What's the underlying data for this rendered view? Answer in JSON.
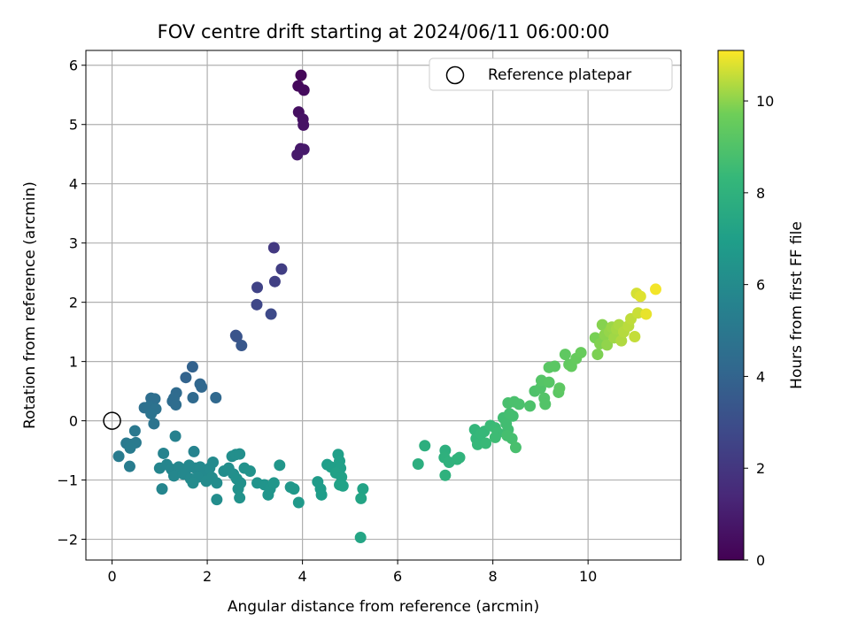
{
  "chart_data": {
    "type": "scatter",
    "title": "FOV centre drift starting at 2024/06/11 06:00:00",
    "xlabel": "Angular distance from reference (arcmin)",
    "ylabel": "Rotation from reference (arcmin)",
    "xlim": [
      -0.55,
      11.95
    ],
    "ylim": [
      -2.35,
      6.25
    ],
    "xticks": [
      0,
      2,
      4,
      6,
      8,
      10
    ],
    "yticks": [
      -2,
      -1,
      0,
      1,
      2,
      3,
      4,
      5,
      6
    ],
    "grid": true,
    "colormap": "viridis",
    "colorbar": {
      "label": "Hours from first FF file",
      "range": [
        0,
        11.1
      ],
      "ticks": [
        0,
        2,
        4,
        6,
        8,
        10
      ]
    },
    "legend": {
      "position": "top-right",
      "entries": [
        "Reference platepar"
      ]
    },
    "reference_point": {
      "x": 0,
      "y": 0
    },
    "points": [
      {
        "x": 3.97,
        "y": 5.83,
        "c": 0.2
      },
      {
        "x": 3.91,
        "y": 5.65,
        "c": 0.3
      },
      {
        "x": 4.03,
        "y": 5.58,
        "c": 0.35
      },
      {
        "x": 3.92,
        "y": 5.21,
        "c": 0.5
      },
      {
        "x": 4.01,
        "y": 5.09,
        "c": 0.6
      },
      {
        "x": 4.02,
        "y": 4.99,
        "c": 0.65
      },
      {
        "x": 3.96,
        "y": 4.59,
        "c": 0.8
      },
      {
        "x": 4.03,
        "y": 4.58,
        "c": 0.85
      },
      {
        "x": 3.89,
        "y": 4.49,
        "c": 0.9
      },
      {
        "x": 3.4,
        "y": 2.92,
        "c": 2.1
      },
      {
        "x": 3.56,
        "y": 2.56,
        "c": 2.3
      },
      {
        "x": 3.42,
        "y": 2.35,
        "c": 2.4
      },
      {
        "x": 3.05,
        "y": 2.25,
        "c": 2.5
      },
      {
        "x": 3.04,
        "y": 1.96,
        "c": 2.7
      },
      {
        "x": 3.34,
        "y": 1.8,
        "c": 2.8
      },
      {
        "x": 2.6,
        "y": 1.44,
        "c": 3.2
      },
      {
        "x": 2.62,
        "y": 1.42,
        "c": 3.25
      },
      {
        "x": 2.72,
        "y": 1.27,
        "c": 3.4
      },
      {
        "x": 1.69,
        "y": 0.91,
        "c": 3.9
      },
      {
        "x": 1.55,
        "y": 0.73,
        "c": 4.0
      },
      {
        "x": 1.85,
        "y": 0.62,
        "c": 4.1
      },
      {
        "x": 1.88,
        "y": 0.57,
        "c": 4.15
      },
      {
        "x": 1.35,
        "y": 0.47,
        "c": 4.3
      },
      {
        "x": 1.3,
        "y": 0.38,
        "c": 4.35
      },
      {
        "x": 1.27,
        "y": 0.33,
        "c": 4.4
      },
      {
        "x": 2.18,
        "y": 0.39,
        "c": 4.2
      },
      {
        "x": 0.82,
        "y": 0.38,
        "c": 4.5
      },
      {
        "x": 0.9,
        "y": 0.37,
        "c": 4.55
      },
      {
        "x": 0.68,
        "y": 0.22,
        "c": 4.6
      },
      {
        "x": 0.78,
        "y": 0.24,
        "c": 4.65
      },
      {
        "x": 0.92,
        "y": 0.2,
        "c": 4.7
      },
      {
        "x": 1.34,
        "y": 0.27,
        "c": 4.45
      },
      {
        "x": 0.82,
        "y": 0.12,
        "c": 4.75
      },
      {
        "x": 1.7,
        "y": 0.39,
        "c": 4.25
      },
      {
        "x": 0.88,
        "y": -0.05,
        "c": 4.8
      },
      {
        "x": 0.48,
        "y": -0.17,
        "c": 5.0
      },
      {
        "x": 0.3,
        "y": -0.38,
        "c": 5.05
      },
      {
        "x": 0.4,
        "y": -0.4,
        "c": 5.1
      },
      {
        "x": 0.5,
        "y": -0.37,
        "c": 5.1
      },
      {
        "x": 0.38,
        "y": -0.46,
        "c": 5.15
      },
      {
        "x": 0.14,
        "y": -0.6,
        "c": 5.2
      },
      {
        "x": 0.37,
        "y": -0.77,
        "c": 5.25
      },
      {
        "x": 1.33,
        "y": -0.26,
        "c": 5.5
      },
      {
        "x": 1.08,
        "y": -0.55,
        "c": 5.6
      },
      {
        "x": 1.72,
        "y": -0.52,
        "c": 5.6
      },
      {
        "x": 1.0,
        "y": -0.8,
        "c": 5.7
      },
      {
        "x": 1.15,
        "y": -0.74,
        "c": 5.7
      },
      {
        "x": 1.25,
        "y": -0.82,
        "c": 5.75
      },
      {
        "x": 1.4,
        "y": -0.78,
        "c": 5.8
      },
      {
        "x": 1.55,
        "y": -0.83,
        "c": 5.8
      },
      {
        "x": 1.62,
        "y": -0.75,
        "c": 5.85
      },
      {
        "x": 1.75,
        "y": -0.8,
        "c": 5.85
      },
      {
        "x": 1.85,
        "y": -0.78,
        "c": 5.9
      },
      {
        "x": 1.95,
        "y": -0.86,
        "c": 5.9
      },
      {
        "x": 2.05,
        "y": -0.8,
        "c": 5.95
      },
      {
        "x": 2.12,
        "y": -0.7,
        "c": 5.95
      },
      {
        "x": 1.3,
        "y": -0.93,
        "c": 5.8
      },
      {
        "x": 1.5,
        "y": -0.9,
        "c": 5.85
      },
      {
        "x": 1.65,
        "y": -0.98,
        "c": 5.9
      },
      {
        "x": 1.8,
        "y": -0.95,
        "c": 5.95
      },
      {
        "x": 1.98,
        "y": -1.02,
        "c": 6.0
      },
      {
        "x": 2.1,
        "y": -0.96,
        "c": 6.0
      },
      {
        "x": 2.2,
        "y": -1.05,
        "c": 6.05
      },
      {
        "x": 1.7,
        "y": -1.05,
        "c": 6.0
      },
      {
        "x": 1.05,
        "y": -1.15,
        "c": 5.7
      },
      {
        "x": 2.2,
        "y": -1.33,
        "c": 6.1
      },
      {
        "x": 2.35,
        "y": -0.85,
        "c": 6.1
      },
      {
        "x": 2.45,
        "y": -0.8,
        "c": 6.15
      },
      {
        "x": 2.52,
        "y": -0.6,
        "c": 6.15
      },
      {
        "x": 2.6,
        "y": -0.57,
        "c": 6.2
      },
      {
        "x": 2.68,
        "y": -0.56,
        "c": 6.2
      },
      {
        "x": 2.55,
        "y": -0.9,
        "c": 6.2
      },
      {
        "x": 2.62,
        "y": -0.98,
        "c": 6.25
      },
      {
        "x": 2.7,
        "y": -1.05,
        "c": 6.25
      },
      {
        "x": 2.78,
        "y": -0.8,
        "c": 6.3
      },
      {
        "x": 2.65,
        "y": -1.15,
        "c": 6.3
      },
      {
        "x": 2.68,
        "y": -1.3,
        "c": 6.35
      },
      {
        "x": 2.9,
        "y": -0.85,
        "c": 6.35
      },
      {
        "x": 3.05,
        "y": -1.05,
        "c": 6.4
      },
      {
        "x": 3.2,
        "y": -1.08,
        "c": 6.45
      },
      {
        "x": 3.28,
        "y": -1.25,
        "c": 6.5
      },
      {
        "x": 3.32,
        "y": -1.15,
        "c": 6.5
      },
      {
        "x": 3.4,
        "y": -1.05,
        "c": 6.55
      },
      {
        "x": 3.52,
        "y": -0.75,
        "c": 6.55
      },
      {
        "x": 3.75,
        "y": -1.12,
        "c": 6.6
      },
      {
        "x": 3.82,
        "y": -1.15,
        "c": 6.65
      },
      {
        "x": 3.92,
        "y": -1.38,
        "c": 6.7
      },
      {
        "x": 4.32,
        "y": -1.03,
        "c": 6.8
      },
      {
        "x": 4.38,
        "y": -1.15,
        "c": 6.85
      },
      {
        "x": 4.4,
        "y": -1.25,
        "c": 6.9
      },
      {
        "x": 4.52,
        "y": -0.74,
        "c": 6.95
      },
      {
        "x": 4.6,
        "y": -0.78,
        "c": 7.0
      },
      {
        "x": 4.75,
        "y": -0.57,
        "c": 7.0
      },
      {
        "x": 4.78,
        "y": -0.68,
        "c": 7.05
      },
      {
        "x": 4.8,
        "y": -0.8,
        "c": 7.05
      },
      {
        "x": 4.7,
        "y": -0.88,
        "c": 7.1
      },
      {
        "x": 4.82,
        "y": -0.95,
        "c": 7.1
      },
      {
        "x": 4.78,
        "y": -1.08,
        "c": 7.15
      },
      {
        "x": 4.85,
        "y": -1.1,
        "c": 7.15
      },
      {
        "x": 5.27,
        "y": -1.15,
        "c": 7.2
      },
      {
        "x": 5.23,
        "y": -1.31,
        "c": 7.25
      },
      {
        "x": 5.22,
        "y": -1.97,
        "c": 7.3
      },
      {
        "x": 6.43,
        "y": -0.73,
        "c": 7.8
      },
      {
        "x": 6.57,
        "y": -0.42,
        "c": 7.85
      },
      {
        "x": 7.0,
        "y": -0.5,
        "c": 7.9
      },
      {
        "x": 6.98,
        "y": -0.62,
        "c": 7.95
      },
      {
        "x": 7.08,
        "y": -0.7,
        "c": 8.0
      },
      {
        "x": 7.0,
        "y": -0.92,
        "c": 8.0
      },
      {
        "x": 7.25,
        "y": -0.65,
        "c": 8.05
      },
      {
        "x": 7.3,
        "y": -0.62,
        "c": 8.1
      },
      {
        "x": 7.62,
        "y": -0.15,
        "c": 8.2
      },
      {
        "x": 7.65,
        "y": -0.3,
        "c": 8.25
      },
      {
        "x": 7.68,
        "y": -0.4,
        "c": 8.3
      },
      {
        "x": 7.75,
        "y": -0.22,
        "c": 8.3
      },
      {
        "x": 7.82,
        "y": -0.18,
        "c": 8.35
      },
      {
        "x": 7.85,
        "y": -0.38,
        "c": 8.4
      },
      {
        "x": 7.95,
        "y": -0.08,
        "c": 8.45
      },
      {
        "x": 8.05,
        "y": -0.12,
        "c": 8.5
      },
      {
        "x": 8.1,
        "y": -0.2,
        "c": 8.55
      },
      {
        "x": 8.05,
        "y": -0.28,
        "c": 8.55
      },
      {
        "x": 8.22,
        "y": 0.05,
        "c": 8.6
      },
      {
        "x": 8.28,
        "y": -0.05,
        "c": 8.65
      },
      {
        "x": 8.32,
        "y": -0.15,
        "c": 8.65
      },
      {
        "x": 8.35,
        "y": 0.12,
        "c": 8.7
      },
      {
        "x": 8.42,
        "y": 0.08,
        "c": 8.7
      },
      {
        "x": 8.3,
        "y": -0.25,
        "c": 8.75
      },
      {
        "x": 8.4,
        "y": -0.3,
        "c": 8.75
      },
      {
        "x": 8.48,
        "y": -0.45,
        "c": 8.8
      },
      {
        "x": 8.32,
        "y": 0.3,
        "c": 8.8
      },
      {
        "x": 8.45,
        "y": 0.32,
        "c": 8.85
      },
      {
        "x": 8.55,
        "y": 0.28,
        "c": 8.85
      },
      {
        "x": 8.78,
        "y": 0.25,
        "c": 8.9
      },
      {
        "x": 8.88,
        "y": 0.5,
        "c": 8.95
      },
      {
        "x": 9.0,
        "y": 0.55,
        "c": 9.0
      },
      {
        "x": 9.08,
        "y": 0.38,
        "c": 9.05
      },
      {
        "x": 9.1,
        "y": 0.28,
        "c": 9.05
      },
      {
        "x": 9.02,
        "y": 0.68,
        "c": 9.1
      },
      {
        "x": 9.18,
        "y": 0.65,
        "c": 9.15
      },
      {
        "x": 9.18,
        "y": 0.9,
        "c": 9.2
      },
      {
        "x": 9.3,
        "y": 0.92,
        "c": 9.25
      },
      {
        "x": 9.38,
        "y": 0.48,
        "c": 9.25
      },
      {
        "x": 9.4,
        "y": 0.55,
        "c": 9.3
      },
      {
        "x": 9.52,
        "y": 1.12,
        "c": 9.35
      },
      {
        "x": 9.6,
        "y": 0.95,
        "c": 9.4
      },
      {
        "x": 9.65,
        "y": 0.92,
        "c": 9.45
      },
      {
        "x": 9.75,
        "y": 1.05,
        "c": 9.5
      },
      {
        "x": 9.85,
        "y": 1.15,
        "c": 9.55
      },
      {
        "x": 10.15,
        "y": 1.4,
        "c": 9.8
      },
      {
        "x": 10.2,
        "y": 1.12,
        "c": 9.85
      },
      {
        "x": 10.25,
        "y": 1.3,
        "c": 9.9
      },
      {
        "x": 10.3,
        "y": 1.62,
        "c": 9.95
      },
      {
        "x": 10.35,
        "y": 1.45,
        "c": 10.0
      },
      {
        "x": 10.4,
        "y": 1.28,
        "c": 10.05
      },
      {
        "x": 10.45,
        "y": 1.5,
        "c": 10.1
      },
      {
        "x": 10.5,
        "y": 1.58,
        "c": 10.15
      },
      {
        "x": 10.55,
        "y": 1.4,
        "c": 10.2
      },
      {
        "x": 10.6,
        "y": 1.55,
        "c": 10.25
      },
      {
        "x": 10.65,
        "y": 1.62,
        "c": 10.3
      },
      {
        "x": 10.7,
        "y": 1.35,
        "c": 10.35
      },
      {
        "x": 10.75,
        "y": 1.5,
        "c": 10.4
      },
      {
        "x": 10.85,
        "y": 1.6,
        "c": 10.45
      },
      {
        "x": 10.9,
        "y": 1.72,
        "c": 10.5
      },
      {
        "x": 10.98,
        "y": 1.42,
        "c": 10.55
      },
      {
        "x": 11.05,
        "y": 1.82,
        "c": 10.6
      },
      {
        "x": 11.02,
        "y": 2.15,
        "c": 10.7
      },
      {
        "x": 11.1,
        "y": 2.1,
        "c": 10.8
      },
      {
        "x": 11.22,
        "y": 1.8,
        "c": 10.9
      },
      {
        "x": 11.42,
        "y": 2.22,
        "c": 11.0
      }
    ]
  }
}
